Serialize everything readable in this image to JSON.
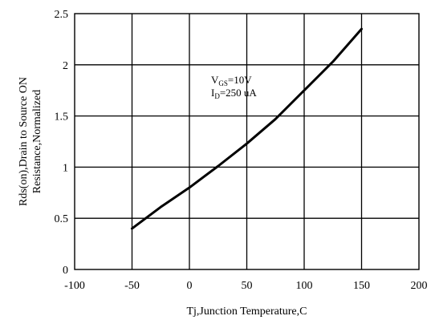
{
  "chart_data": {
    "type": "line",
    "xlabel": "Tj,Junction Temperature,C",
    "ylabel_lines": [
      "Rds(on),Drain to Source ON",
      "Resistance,Normalized"
    ],
    "xlim": [
      -100,
      200
    ],
    "ylim": [
      0,
      2.5
    ],
    "x_ticks": [
      -100,
      -50,
      0,
      50,
      100,
      150,
      200
    ],
    "x_tick_labels": [
      "-100",
      "-50",
      "0",
      "50",
      "100",
      "150",
      "200"
    ],
    "y_ticks": [
      0,
      0.5,
      1,
      1.5,
      2,
      2.5
    ],
    "y_tick_labels": [
      "0",
      "0.5",
      "1",
      "1.5",
      "2",
      "2.5"
    ],
    "grid": true,
    "series": [
      {
        "x": [
          -50,
          -25,
          0,
          25,
          50,
          75,
          100,
          125,
          150
        ],
        "y": [
          0.4,
          0.61,
          0.8,
          1.01,
          1.23,
          1.47,
          1.75,
          2.03,
          2.35
        ],
        "color": "#000000"
      }
    ],
    "annotations": [
      {
        "base": "V",
        "sub": "GS",
        "rest": "=10V"
      },
      {
        "base": "I",
        "sub": "D",
        "rest": "=250 uA"
      }
    ]
  }
}
